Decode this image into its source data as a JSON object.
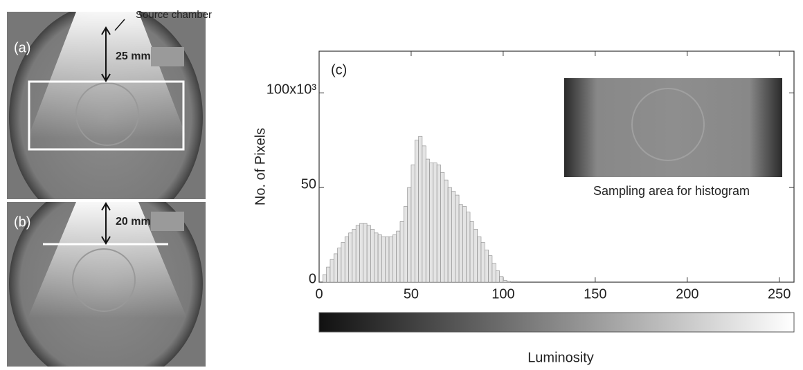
{
  "chart_data": {
    "type": "histogram",
    "title": "(c)",
    "x_label": "Luminosity",
    "y_label": "No. of Pixels",
    "bins": [
      0,
      2,
      4,
      6,
      8,
      10,
      12,
      14,
      16,
      18,
      20,
      22,
      24,
      26,
      28,
      30,
      32,
      34,
      36,
      38,
      40,
      42,
      44,
      46,
      48,
      50,
      52,
      54,
      56,
      58,
      60,
      62,
      64,
      66,
      68,
      70,
      72,
      74,
      76,
      78,
      80,
      82,
      84,
      86,
      88,
      90,
      92,
      94,
      96,
      98,
      100,
      102,
      104
    ],
    "values": [
      0,
      4,
      8,
      12,
      15,
      18,
      21,
      24,
      26,
      28,
      30,
      31,
      31,
      30,
      28,
      26,
      25,
      24,
      24,
      24,
      25,
      27,
      32,
      40,
      50,
      62,
      75,
      77,
      72,
      65,
      63,
      63,
      62,
      58,
      54,
      50,
      48,
      46,
      41,
      40,
      37,
      32,
      28,
      24,
      21,
      17,
      14,
      10,
      6,
      3,
      1,
      0.5
    ],
    "color": "#e4e4e4",
    "xlim": [
      0,
      258
    ],
    "xticks": [
      0,
      50,
      100,
      150,
      200,
      250
    ],
    "ylim": [
      0,
      122
    ],
    "yticks": [
      0,
      50,
      {
        "value": 100,
        "label": "100x10³"
      }
    ],
    "inset_caption": "Sampling area for histogram"
  },
  "panels": {
    "a": {
      "label": "(a)",
      "distance": "25 mm"
    },
    "b": {
      "label": "(b)",
      "distance": "20 mm"
    },
    "source": "Source chamber"
  }
}
